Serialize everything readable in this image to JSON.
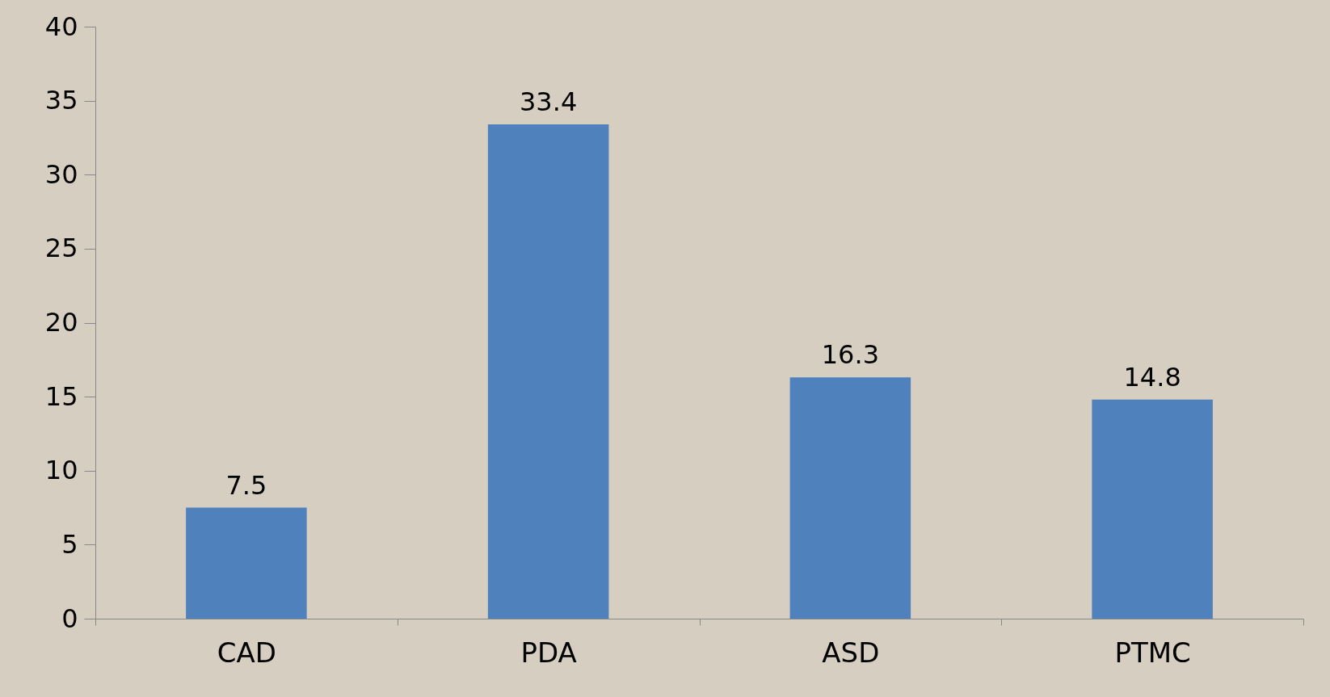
{
  "chart_data": {
    "type": "bar",
    "categories": [
      "CAD",
      "PDA",
      "ASD",
      "PTMC"
    ],
    "values": [
      7.5,
      33.4,
      16.3,
      14.8
    ],
    "color": "#4f81bd",
    "ylim": [
      0,
      40
    ],
    "yticks": [
      0,
      5,
      10,
      15,
      20,
      25,
      30,
      35,
      40
    ],
    "data_labels": true,
    "grid": false
  }
}
